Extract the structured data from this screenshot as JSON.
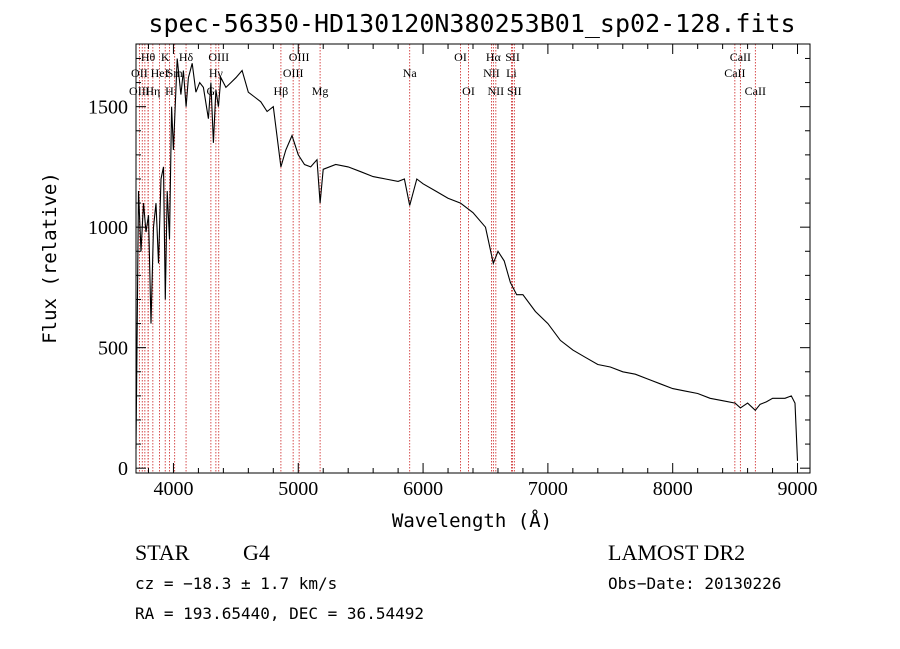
{
  "chart_data": {
    "type": "line",
    "title": "spec-56350-HD130120N380253B01_sp02-128.fits",
    "xlabel": "Wavelength (Å)",
    "ylabel": "Flux (relative)",
    "xlim": [
      3700,
      9100
    ],
    "ylim": [
      -20,
      1760
    ],
    "x_ticks": [
      4000,
      5000,
      6000,
      7000,
      8000,
      9000
    ],
    "y_ticks": [
      0,
      500,
      1000,
      1500
    ],
    "grid": false,
    "line_color": "#000000",
    "marker_color": "#cc2222",
    "series": [
      {
        "x": [
          3700,
          3720,
          3740,
          3760,
          3780,
          3800,
          3820,
          3840,
          3860,
          3880,
          3900,
          3920,
          3935,
          3950,
          3968,
          3985,
          4000,
          4030,
          4060,
          4080,
          4101,
          4120,
          4150,
          4180,
          4210,
          4240,
          4280,
          4300,
          4320,
          4340,
          4360,
          4380,
          4420,
          4460,
          4500,
          4550,
          4600,
          4650,
          4700,
          4750,
          4800,
          4861,
          4900,
          4950,
          5000,
          5050,
          5100,
          5150,
          5175,
          5200,
          5300,
          5400,
          5500,
          5600,
          5700,
          5800,
          5850,
          5893,
          5950,
          6000,
          6100,
          6200,
          6300,
          6400,
          6500,
          6563,
          6600,
          6650,
          6700,
          6750,
          6800,
          6900,
          7000,
          7100,
          7200,
          7300,
          7400,
          7500,
          7600,
          7700,
          7800,
          7900,
          8000,
          8100,
          8200,
          8300,
          8400,
          8500,
          8542,
          8600,
          8662,
          8700,
          8750,
          8800,
          8850,
          8900,
          8950,
          8980,
          9000
        ],
        "y": [
          80,
          1150,
          900,
          1100,
          980,
          1050,
          600,
          1000,
          1100,
          850,
          1200,
          1250,
          700,
          1150,
          950,
          1500,
          1320,
          1700,
          1550,
          1650,
          1500,
          1620,
          1680,
          1560,
          1600,
          1580,
          1450,
          1600,
          1350,
          1570,
          1500,
          1620,
          1580,
          1600,
          1620,
          1650,
          1560,
          1540,
          1520,
          1480,
          1500,
          1250,
          1320,
          1380,
          1300,
          1260,
          1250,
          1280,
          1100,
          1240,
          1260,
          1250,
          1230,
          1210,
          1200,
          1190,
          1200,
          1090,
          1200,
          1180,
          1150,
          1120,
          1100,
          1060,
          1000,
          850,
          900,
          860,
          770,
          720,
          720,
          650,
          600,
          530,
          490,
          460,
          430,
          420,
          400,
          390,
          370,
          350,
          330,
          320,
          310,
          290,
          280,
          270,
          250,
          270,
          240,
          265,
          275,
          290,
          290,
          290,
          300,
          270,
          30
        ]
      }
    ],
    "line_markers": {
      "row1": [
        {
          "label": "Hθ",
          "wl": 3797
        },
        {
          "label": "K",
          "wl": 3934
        },
        {
          "label": "Hδ",
          "wl": 4101
        },
        {
          "label": "OIII",
          "wl": 4363
        },
        {
          "label": "OIII",
          "wl": 5007
        },
        {
          "label": "OI",
          "wl": 6300
        },
        {
          "label": "Hα",
          "wl": 6563
        },
        {
          "label": "SII",
          "wl": 6717
        },
        {
          "label": "CaII",
          "wl": 8542
        }
      ],
      "row2": [
        {
          "label": "OII",
          "wl": 3727
        },
        {
          "label": "HeI",
          "wl": 3889
        },
        {
          "label": "Sm",
          "wl": 4010
        },
        {
          "label": "Hγ",
          "wl": 4340
        },
        {
          "label": "OIII",
          "wl": 4959
        },
        {
          "label": "Na",
          "wl": 5893
        },
        {
          "label": "NII",
          "wl": 6548
        },
        {
          "label": "Li",
          "wl": 6708
        },
        {
          "label": "CaII",
          "wl": 8498
        }
      ],
      "row3": [
        {
          "label": "OIII",
          "wl": 3727
        },
        {
          "label": "Hη",
          "wl": 3835
        },
        {
          "label": "H",
          "wl": 3968
        },
        {
          "label": "G",
          "wl": 4300
        },
        {
          "label": "Hβ",
          "wl": 4861
        },
        {
          "label": "Mg",
          "wl": 5175
        },
        {
          "label": "OI",
          "wl": 6364
        },
        {
          "label": "NII",
          "wl": 6583
        },
        {
          "label": "SII",
          "wl": 6731
        },
        {
          "label": "CaII",
          "wl": 8662
        }
      ],
      "extra_lines": [
        3750,
        3771,
        3798,
        3889,
        3934,
        3968,
        4101,
        4340,
        4861,
        6563,
        6548,
        6583,
        6717,
        6731,
        8498,
        8542,
        8662
      ]
    }
  },
  "info": {
    "class_label": "STAR",
    "subclass": "G4",
    "survey": "LAMOST DR2",
    "cz": "cz = −18.3 ± 1.7 km/s",
    "obs_date": "Obs−Date: 20130226",
    "coords": "RA = 193.65440, DEC =  36.54492"
  }
}
